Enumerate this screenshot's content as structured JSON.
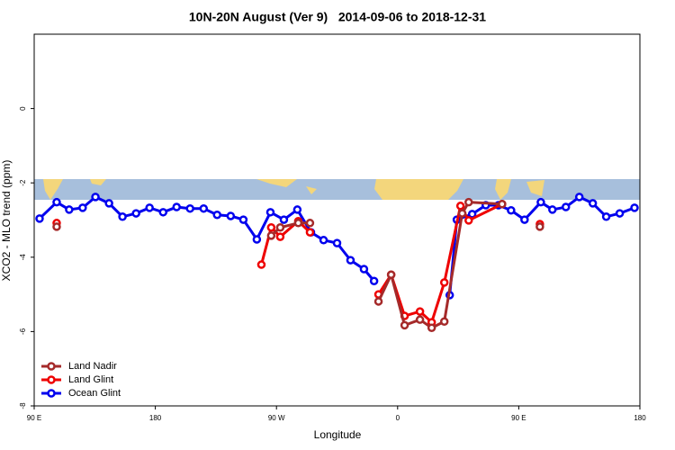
{
  "chart_data": {
    "type": "line",
    "title": "10N-20N August (Ver 9)   2014-09-06 to 2018-12-31",
    "x_label": "Longitude",
    "y_label": "XCO2 - MLO trend (ppm)",
    "xlim": [
      90,
      540
    ],
    "ylim": [
      -8,
      2
    ],
    "xticks": [
      {
        "value": 90,
        "label": "90 E"
      },
      180,
      {
        "value": 270,
        "label": "90 W"
      },
      {
        "value": 360,
        "label": "0"
      },
      {
        "value": 450,
        "label": "90 E"
      },
      {
        "value": 540,
        "label": "180"
      }
    ],
    "yticks": [
      -8,
      -6,
      -4,
      -2,
      0
    ],
    "legend": "bottom-left",
    "series": [
      {
        "name": "Land Nadir",
        "color": "#a52a2a",
        "x": [
          106.7,
          185,
          266.1,
          272.8,
          286.2,
          294.9,
          320,
          345.8,
          355.2,
          365.2,
          376.6,
          385.3,
          394.7,
          408,
          412.8,
          437.6,
          450,
          465.7
        ],
        "values": [
          -3.18,
          null,
          -3.42,
          -3.2,
          -3.08,
          -3.08,
          null,
          -5.19,
          -4.47,
          -5.83,
          -5.68,
          -5.9,
          -5.73,
          -2.82,
          -2.52,
          -2.57,
          null,
          -3.18
        ]
      },
      {
        "name": "Land Glint",
        "color": "#ee0000",
        "x": [
          106.7,
          185,
          258.8,
          266.1,
          272.8,
          286.2,
          294.9,
          320,
          345.8,
          355.2,
          365.2,
          376.6,
          385.3,
          394.7,
          406.7,
          412.8,
          437.6,
          450,
          465.7
        ],
        "values": [
          -3.08,
          null,
          -4.2,
          -3.2,
          -3.45,
          -3.03,
          -3.33,
          null,
          -5.0,
          -4.47,
          -5.58,
          -5.46,
          -5.75,
          -4.68,
          -2.62,
          -3.01,
          -2.57,
          null,
          -3.11
        ]
      },
      {
        "name": "Ocean Glint",
        "color": "#0000ee",
        "x": [
          94,
          106.7,
          116,
          126,
          135.5,
          145.6,
          155.6,
          165.7,
          175.7,
          185.8,
          195.8,
          205.8,
          215.9,
          225.9,
          236,
          245.4,
          255.4,
          265.5,
          275.5,
          285.5,
          295.6,
          305,
          315,
          325,
          335,
          342.5,
          370,
          398.7,
          404,
          415.4,
          425.5,
          434.9,
          444.3,
          454.3,
          466.4,
          475,
          485,
          495,
          505,
          515,
          525,
          536
        ],
        "values": [
          -2.96,
          -2.52,
          -2.72,
          -2.67,
          -2.38,
          -2.55,
          -2.91,
          -2.82,
          -2.67,
          -2.79,
          -2.65,
          -2.69,
          -2.69,
          -2.86,
          -2.89,
          -2.99,
          -3.52,
          -2.79,
          -2.99,
          -2.72,
          -3.33,
          -3.54,
          -3.62,
          -4.08,
          -4.32,
          -4.64,
          null,
          -5.02,
          -2.99,
          -2.84,
          -2.6,
          -2.6,
          -2.74,
          -2.99,
          -2.52,
          -2.72,
          -2.65,
          -2.38,
          -2.55,
          -2.91,
          -2.82,
          -2.67
        ]
      }
    ]
  }
}
